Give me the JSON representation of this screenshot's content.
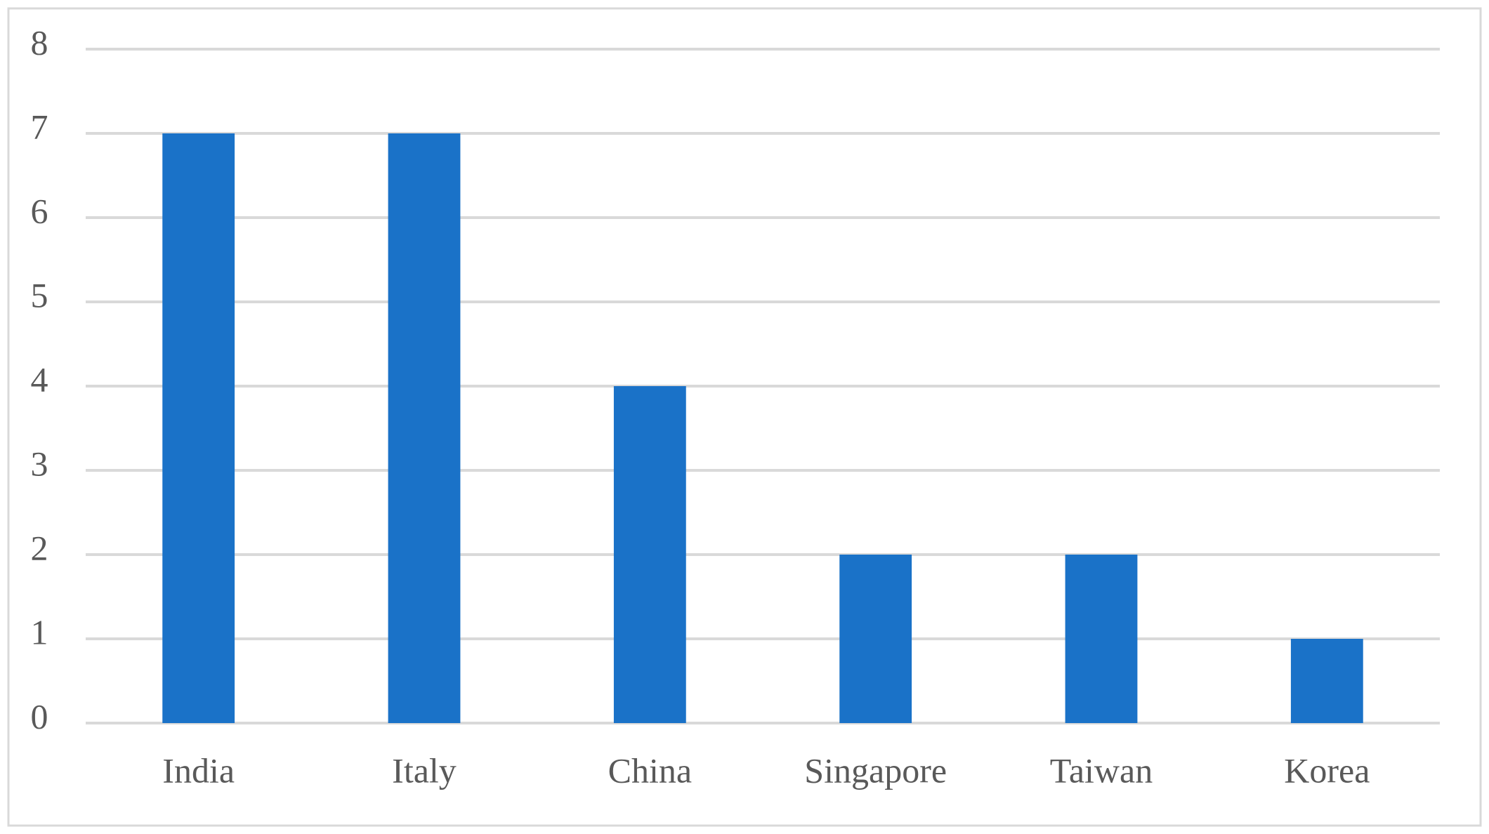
{
  "chart_data": {
    "type": "bar",
    "categories": [
      "India",
      "Italy",
      "China",
      "Singapore",
      "Taiwan",
      "Korea"
    ],
    "values": [
      7,
      7,
      4,
      2,
      2,
      1
    ],
    "color": "#1a72c8",
    "ylim": [
      0,
      8
    ],
    "yticks": [
      0,
      1,
      2,
      3,
      4,
      5,
      6,
      7,
      8
    ],
    "grid": true
  }
}
